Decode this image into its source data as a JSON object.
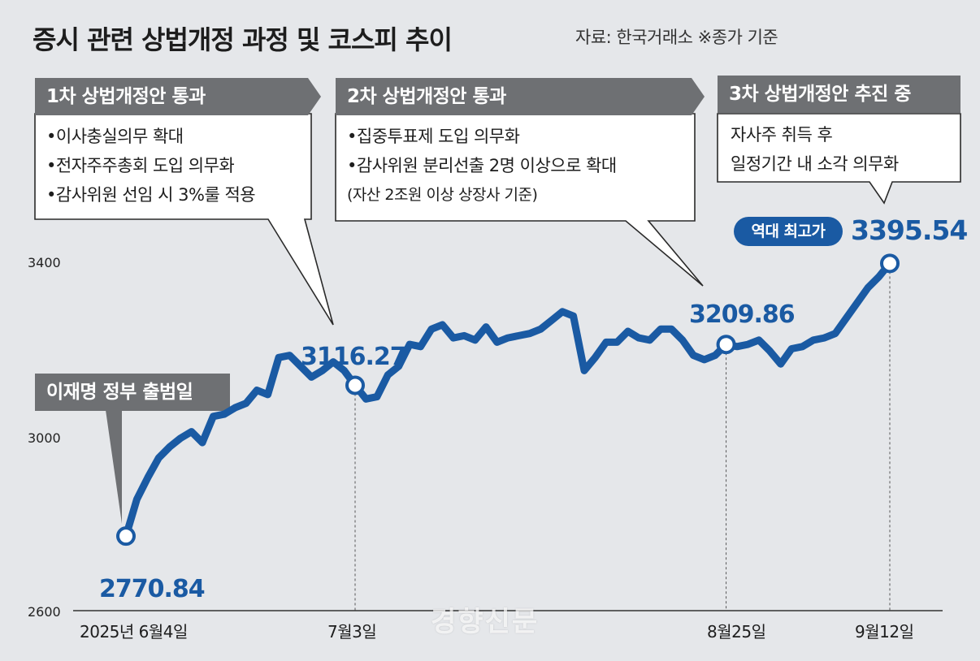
{
  "title": "증시 관련 상법개정 과정 및 코스피 추이",
  "source": "자료: 한국거래소 ※종가 기준",
  "tags": {
    "first": "1차 상법개정안 통과",
    "second": "2차 상법개정안 통과",
    "third": "3차 상법개정안 추진 중",
    "inauguration": "이재명 정부 출범일"
  },
  "boxes": {
    "first": [
      "•이사충실의무 확대",
      "•전자주주총회 도입 의무화",
      "•감사위원 선임 시 3%룰 적용"
    ],
    "second": [
      "•집중투표제 도입 의무화",
      "•감사위원 분리선출 2명 이상으로 확대",
      " (자산 2조원 이상 상장사 기준)"
    ],
    "third": [
      "자사주 취득 후",
      "일정기간 내 소각 의무화"
    ]
  },
  "record_badge": "역대 최고가",
  "watermark": "경향신문",
  "colors": {
    "line": "#1a5aa3",
    "tag": "#6e7073",
    "background": "#e5e7ea"
  },
  "chart_data": {
    "type": "line",
    "title": "증시 관련 상법개정 과정 및 코스피 추이",
    "ylim": [
      2600,
      3400
    ],
    "y_ticks": [
      "3400",
      "3000",
      "2600"
    ],
    "x_ticks": [
      "2025년 6월4일",
      "7월3일",
      "8월25일",
      "9월12일"
    ],
    "grid": false,
    "series": [
      {
        "values": [
          2770.84,
          2855,
          2905,
          2950,
          2975,
          2995,
          3010,
          2985,
          3045,
          3050,
          3065,
          3075,
          3105,
          3095,
          3180,
          3185,
          3160,
          3135,
          3150,
          3170,
          3150,
          3116.27,
          3085,
          3090,
          3140,
          3160,
          3210,
          3205,
          3245,
          3255,
          3225,
          3230,
          3220,
          3250,
          3215,
          3225,
          3230,
          3235,
          3245,
          3265,
          3285,
          3275,
          3150,
          3180,
          3215,
          3215,
          3240,
          3225,
          3220,
          3245,
          3245,
          3220,
          3185,
          3175,
          3185,
          3209.86,
          3205,
          3210,
          3220,
          3195,
          3165,
          3200,
          3205,
          3220,
          3225,
          3235,
          3270,
          3305,
          3340,
          3365,
          3395.54
        ],
        "labeled_points": [
          {
            "date": "2025년 6월4일",
            "value": "2770.84"
          },
          {
            "date": "7월3일",
            "value": "3116.27"
          },
          {
            "date": "8월25일",
            "value": "3209.86"
          },
          {
            "date": "9월12일",
            "value": "3395.54"
          }
        ]
      }
    ]
  }
}
